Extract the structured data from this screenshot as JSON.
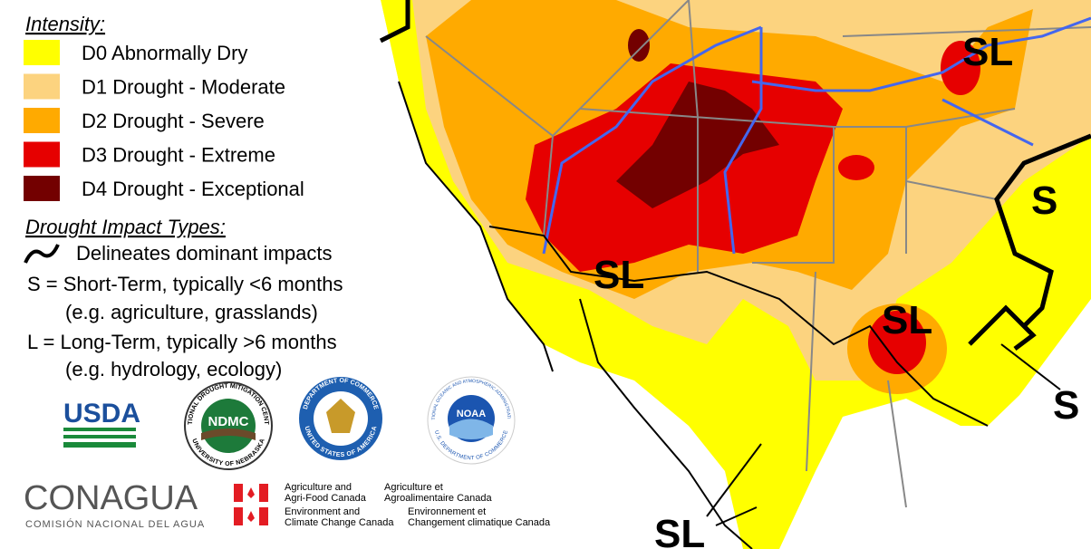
{
  "legend": {
    "title": "Intensity:",
    "items": [
      {
        "label": "D0 Abnormally Dry",
        "color": "#ffff00"
      },
      {
        "label": "D1 Drought - Moderate",
        "color": "#fcd37f"
      },
      {
        "label": "D2 Drought - Severe",
        "color": "#ffaa00"
      },
      {
        "label": "D3 Drought - Extreme",
        "color": "#e60000"
      },
      {
        "label": "D4 Drought - Exceptional",
        "color": "#730000"
      }
    ]
  },
  "impact": {
    "title": "Drought Impact Types:",
    "lines": [
      "Delineates dominant impacts",
      "S = Short-Term, typically <6 months",
      "(e.g. agriculture, grasslands)",
      "L = Long-Term, typically >6 months",
      "(e.g. hydrology, ecology)"
    ]
  },
  "logos": {
    "usda": "USDA",
    "ndmc": "NDMC",
    "ndmc_top": "NATIONAL DROUGHT MITIGATION CENTER",
    "ndmc_bottom": "UNIVERSITY OF NEBRASKA",
    "doc_top": "DEPARTMENT OF COMMERCE",
    "doc_bottom": "UNITED STATES OF AMERICA",
    "noaa": "NOAA",
    "noaa_top": "NATIONAL OCEANIC AND ATMOSPHERIC ADMINISTRATION",
    "noaa_bottom": "U.S. DEPARTMENT OF COMMERCE",
    "conagua": "CONAGUA",
    "conagua_sub": "COMISIÓN NACIONAL DEL AGUA",
    "canada": [
      "Agriculture and",
      "Agri-Food Canada",
      "Agriculture et",
      "Agroalimentaire Canada",
      "Environment and",
      "Climate Change Canada",
      "Environnement et",
      "Changement climatique Canada"
    ]
  },
  "map": {
    "labels": [
      "SL",
      "SL",
      "SL",
      "SL",
      "S",
      "S"
    ]
  }
}
